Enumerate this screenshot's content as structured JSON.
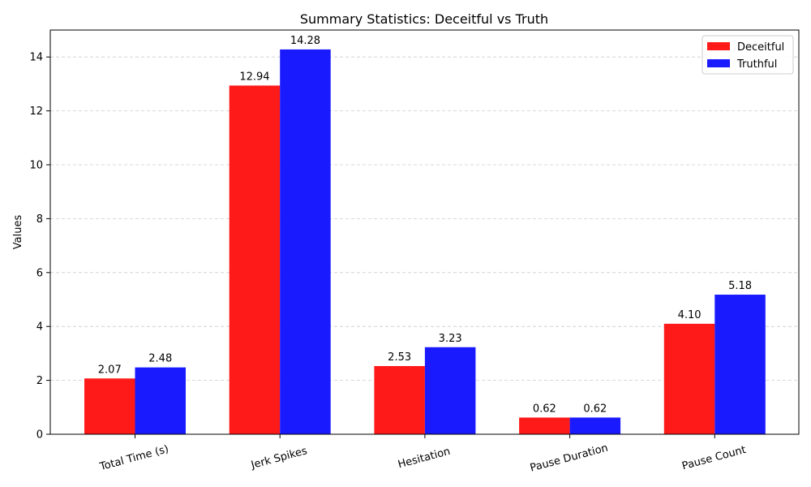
{
  "chart_data": {
    "type": "bar",
    "title": "Summary Statistics: Deceitful vs Truth",
    "xlabel": "",
    "ylabel": "Values",
    "ylim": [
      0,
      15
    ],
    "yticks": [
      0,
      2,
      4,
      6,
      8,
      10,
      12,
      14
    ],
    "grid": true,
    "legend_position": "top-right",
    "categories": [
      "Total Time (s)",
      "Jerk Spikes",
      "Hesitation",
      "Pause Duration",
      "Pause Count"
    ],
    "series": [
      {
        "name": "Deceitful",
        "color": "#ff1a1a",
        "values": [
          2.07,
          12.94,
          2.53,
          0.62,
          4.1
        ],
        "labels": [
          "2.07",
          "12.94",
          "2.53",
          "0.62",
          "4.10"
        ]
      },
      {
        "name": "Truthful",
        "color": "#1a1aff",
        "values": [
          2.48,
          14.28,
          3.23,
          0.62,
          5.18
        ],
        "labels": [
          "2.48",
          "14.28",
          "3.23",
          "0.62",
          "5.18"
        ]
      }
    ]
  }
}
